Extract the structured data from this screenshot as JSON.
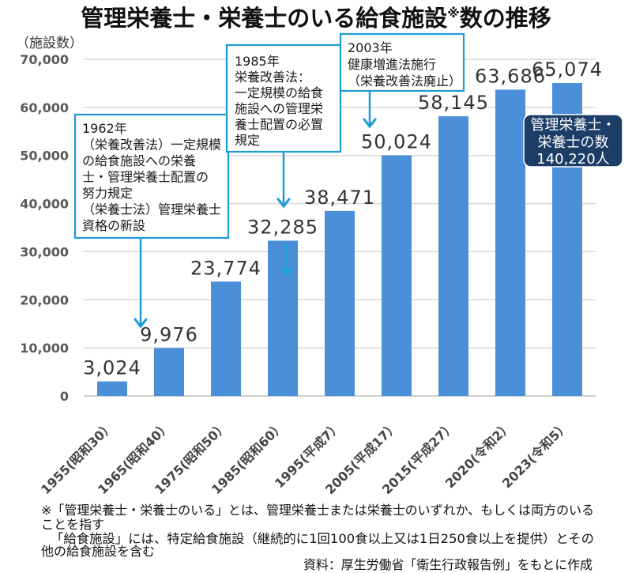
{
  "title": {
    "main": "管理栄養士・栄養士のいる給食施設",
    "mark": "※",
    "tail": "数の推移"
  },
  "chart_data": {
    "type": "bar",
    "title": "管理栄養士・栄養士のいる給食施設※数の推移",
    "xlabel": "",
    "ylabel": "（施設数）",
    "categories": [
      "1955(昭和30）",
      "1965(昭和40）",
      "1975(昭和50）",
      "1985(昭和60）",
      "1995(平成7）",
      "2005(平成17）",
      "2015(平成27）",
      "2020(令和2）",
      "2023(令和5）"
    ],
    "values": [
      3024,
      9976,
      23774,
      32285,
      38471,
      50024,
      58145,
      63686,
      65074
    ],
    "value_labels": [
      "3,024",
      "9,976",
      "23,774",
      "32,285",
      "38,471",
      "50,024",
      "58,145",
      "63,686",
      "65,074"
    ],
    "ylim": [
      0,
      70000
    ],
    "yticks": [
      0,
      10000,
      20000,
      30000,
      40000,
      50000,
      60000,
      70000
    ],
    "ytick_labels": [
      "0",
      "10,000",
      "20,000",
      "30,000",
      "40,000",
      "50,000",
      "60,000",
      "70,000"
    ],
    "grid": true,
    "legend": "none",
    "colors": {
      "bar": "#4a8fd8",
      "annotation": "#1e9ad6",
      "callout": "#1b3d66"
    },
    "annotations": [
      {
        "target_category": "1965(昭和40）",
        "lines": [
          "1962年",
          "（栄養改善法）一定規模",
          "の給食施設への栄養",
          "士・管理栄養士配置の",
          "努力規定",
          "（栄養士法）管理栄養士",
          "資格の新設"
        ]
      },
      {
        "target_category": "1985(昭和60）",
        "lines": [
          "1985年",
          "栄養改善法：",
          "一定規模の給食",
          "施設への管理栄",
          "養士配置の必置",
          "規定"
        ]
      },
      {
        "target_category": "2005(平成17）",
        "lines": [
          "2003年",
          "健康増進法施行",
          "（栄養改善法廃止）"
        ]
      }
    ],
    "callout": {
      "target_category": "2023(令和5）",
      "lines": [
        "管理栄養士・",
        "栄養士の数",
        "140,220人"
      ]
    }
  },
  "footnotes": [
    "※「管理栄養士・栄養士のいる」とは、管理栄養士または栄養士のいずれか、もしくは両方のいる",
    "ことを指す",
    "「給食施設」には、特定給食施設（継続的に1回100食以上又は1日250食以上を提供）とその",
    "他の給食施設を含む"
  ],
  "source": "資料：厚生労働省「衛生行政報告例」をもとに作成"
}
